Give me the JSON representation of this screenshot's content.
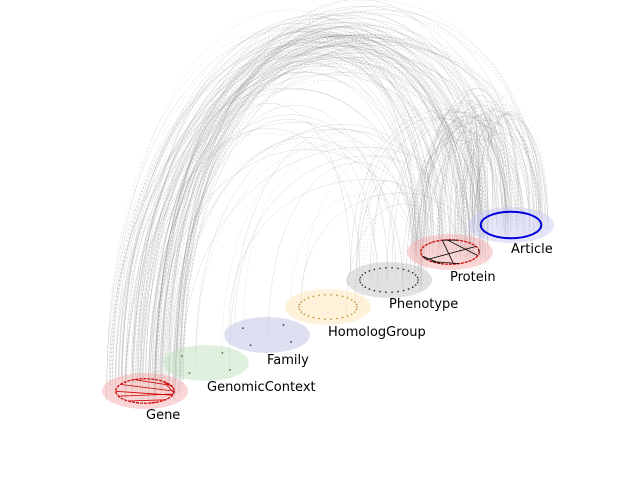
{
  "diagram": {
    "type": "hive-style layered network",
    "nodes": [
      {
        "key": "gene",
        "label": "Gene",
        "fill": "#f4a3a3",
        "ring": "#cc0000",
        "dots": "#d00000",
        "pattern": "ring-dense"
      },
      {
        "key": "genomic",
        "label": "GenomicContext",
        "fill": "#b9dfb5",
        "ring": "",
        "dots": "#3a7a3a",
        "pattern": "few"
      },
      {
        "key": "family",
        "label": "Family",
        "fill": "#b9b9e3",
        "ring": "",
        "dots": "#333366",
        "pattern": "few"
      },
      {
        "key": "homolog",
        "label": "HomologGroup",
        "fill": "#fde3b0",
        "ring": "",
        "dots": "#c08a20",
        "pattern": "ring-sparse"
      },
      {
        "key": "phenotype",
        "label": "Phenotype",
        "fill": "#bdbdbd",
        "ring": "",
        "dots": "#222222",
        "pattern": "ring-sparse"
      },
      {
        "key": "protein",
        "label": "Protein",
        "fill": "#f4a3a3",
        "ring": "#cc0000",
        "dots": "#000000",
        "pattern": "ring-dense"
      },
      {
        "key": "article",
        "label": "Article",
        "fill": "#c5c5f5",
        "ring": "#0000dd",
        "dots": "#0000dd",
        "pattern": "ring-solid"
      }
    ],
    "edge_color": "#777777"
  }
}
